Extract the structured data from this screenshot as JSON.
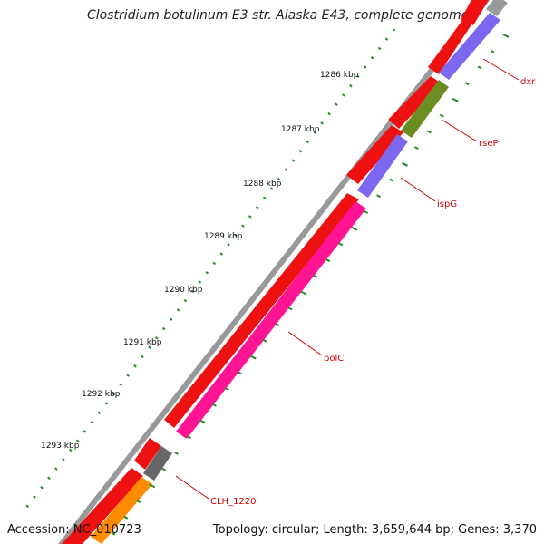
{
  "title": "Clostridium botulinum E3 str. Alaska E43, complete genome",
  "accession": "Accession: NC_010723",
  "summary": "Topology: circular; Length: 3,659,644 bp; Genes: 3,370",
  "colors": {
    "forward_cds": "#ee1111",
    "backbone": "#999999",
    "ticks": "#228b22",
    "dxr": "#7b68ee",
    "rseP": "#6b8e23",
    "ispG": "#7b68ee",
    "polC": "#ff1493",
    "CLH_1220": "#666666",
    "orange_gene": "#ff8c00",
    "label": "#cc0000"
  },
  "scale_labels": [
    "1286 kbp",
    "1287 kbp",
    "1288 kbp",
    "1289 kbp",
    "1290 kbp",
    "1291 kbp",
    "1292 kbp",
    "1293 kbp"
  ],
  "gene_labels": [
    "dxr",
    "rseP",
    "ispG",
    "polC",
    "CLH_1220"
  ]
}
